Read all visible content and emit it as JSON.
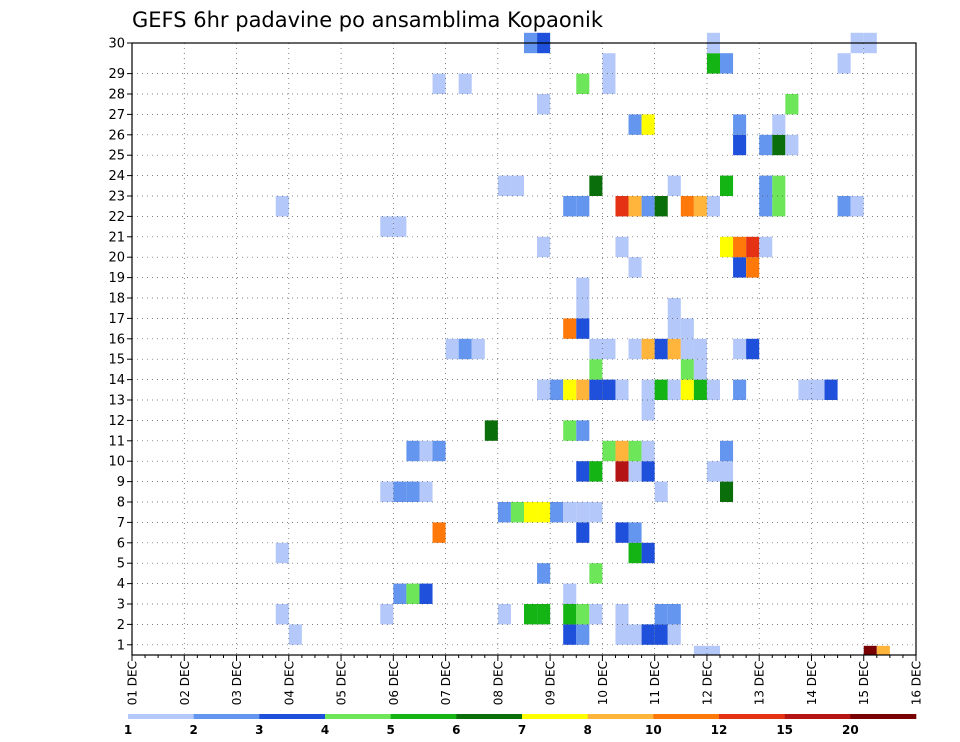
{
  "chart_data": {
    "type": "heatmap",
    "title": "GEFS 6hr padavine po ansamblima Kopaonik",
    "xlabel": "",
    "ylabel": "",
    "x_tick_labels": [
      "01 DEC",
      "02 DEC",
      "03 DEC",
      "04 DEC",
      "05 DEC",
      "06 DEC",
      "07 DEC",
      "08 DEC",
      "09 DEC",
      "10 DEC",
      "11 DEC",
      "12 DEC",
      "13 DEC",
      "14 DEC",
      "15 DEC",
      "16 DEC"
    ],
    "y_tick_labels": [
      "1",
      "2",
      "3",
      "4",
      "5",
      "6",
      "7",
      "8",
      "9",
      "10",
      "11",
      "12",
      "13",
      "14",
      "15",
      "16",
      "17",
      "18",
      "19",
      "20",
      "21",
      "22",
      "23",
      "24",
      "25",
      "26",
      "27",
      "28",
      "29",
      "30"
    ],
    "x_range": [
      "01 DEC 00Z",
      "16 DEC 00Z"
    ],
    "y_range": [
      0,
      30
    ],
    "time_step_hours": 6,
    "grid": "dotted",
    "legend_position": "bottom",
    "colorbar": {
      "labels": [
        "1",
        "2",
        "3",
        "4",
        "5",
        "6",
        "7",
        "8",
        "10",
        "12",
        "15",
        "20"
      ],
      "colors": [
        "#b4c8fa",
        "#6496f0",
        "#1e50dc",
        "#6ee65a",
        "#14b414",
        "#0a6e0a",
        "#ffff00",
        "#ffb43c",
        "#ff780a",
        "#e63214",
        "#b41414",
        "#780000"
      ]
    },
    "cells": [
      [
        1,
        1,
        3,
        1
      ],
      [
        1,
        3,
        6,
        3
      ],
      [
        1,
        3,
        7,
        2
      ],
      [
        1,
        4,
        1,
        1
      ],
      [
        1,
        4,
        2,
        1
      ],
      [
        1,
        4,
        3,
        3
      ],
      [
        1,
        4,
        4,
        3
      ],
      [
        1,
        4,
        5,
        1
      ],
      [
        2,
        1,
        2,
        1
      ],
      [
        2,
        2,
        1,
        1
      ],
      [
        2,
        3,
        1,
        1
      ],
      [
        2,
        3,
        3,
        5
      ],
      [
        2,
        3,
        4,
        5
      ],
      [
        2,
        3,
        6,
        5
      ],
      [
        2,
        3,
        7,
        4
      ],
      [
        2,
        3,
        8,
        1
      ],
      [
        2,
        4,
        1,
        1
      ],
      [
        2,
        4,
        4,
        2
      ],
      [
        2,
        4,
        5,
        2
      ],
      [
        3,
        2,
        2,
        2
      ],
      [
        3,
        2,
        3,
        4
      ],
      [
        3,
        2,
        4,
        3
      ],
      [
        3,
        3,
        6,
        1
      ],
      [
        4,
        3,
        4,
        2
      ],
      [
        4,
        3,
        8,
        4
      ],
      [
        5,
        1,
        2,
        1
      ],
      [
        5,
        4,
        2,
        5
      ],
      [
        5,
        4,
        3,
        3
      ],
      [
        6,
        2,
        5,
        9
      ],
      [
        6,
        3,
        7,
        3
      ],
      [
        6,
        4,
        1,
        3
      ],
      [
        6,
        4,
        2,
        2
      ],
      [
        7,
        3,
        1,
        2
      ],
      [
        7,
        3,
        2,
        4
      ],
      [
        7,
        3,
        3,
        7
      ],
      [
        7,
        3,
        4,
        7
      ],
      [
        7,
        3,
        5,
        2
      ],
      [
        7,
        3,
        6,
        1
      ],
      [
        7,
        3,
        7,
        1
      ],
      [
        7,
        3,
        8,
        1
      ],
      [
        8,
        2,
        1,
        1
      ],
      [
        8,
        2,
        2,
        2
      ],
      [
        8,
        2,
        3,
        2
      ],
      [
        8,
        2,
        4,
        1
      ],
      [
        8,
        4,
        4,
        1
      ],
      [
        8,
        5,
        0,
        6
      ],
      [
        9,
        3,
        7,
        3
      ],
      [
        9,
        3,
        8,
        5
      ],
      [
        9,
        4,
        1,
        11
      ],
      [
        9,
        4,
        2,
        1
      ],
      [
        9,
        4,
        3,
        3
      ],
      [
        9,
        4,
        8,
        1
      ],
      [
        9,
        4,
        9,
        1
      ],
      [
        10,
        2,
        3,
        2
      ],
      [
        10,
        2,
        4,
        1
      ],
      [
        10,
        2,
        5,
        2
      ],
      [
        10,
        4,
        0,
        4
      ],
      [
        10,
        4,
        1,
        8
      ],
      [
        10,
        4,
        2,
        4
      ],
      [
        10,
        4,
        3,
        1
      ],
      [
        10,
        5,
        0,
        2
      ],
      [
        11,
        3,
        0,
        6
      ],
      [
        11,
        3,
        6,
        4
      ],
      [
        11,
        3,
        7,
        2
      ],
      [
        12,
        4,
        3,
        1
      ],
      [
        13,
        3,
        4,
        1
      ],
      [
        13,
        3,
        5,
        2
      ],
      [
        13,
        3,
        6,
        7
      ],
      [
        13,
        3,
        7,
        8
      ],
      [
        13,
        3,
        8,
        3
      ],
      [
        13,
        4,
        0,
        3
      ],
      [
        13,
        4,
        1,
        1
      ],
      [
        13,
        4,
        3,
        1
      ],
      [
        13,
        4,
        4,
        5
      ],
      [
        13,
        4,
        5,
        1
      ],
      [
        13,
        4,
        6,
        7
      ],
      [
        13,
        4,
        7,
        5
      ],
      [
        13,
        4,
        8,
        1
      ],
      [
        13,
        5,
        1,
        2
      ],
      [
        13,
        5,
        6,
        1
      ],
      [
        13,
        5,
        7,
        1
      ],
      [
        13,
        5,
        8,
        3
      ],
      [
        14,
        3,
        8,
        4
      ],
      [
        14,
        4,
        6,
        4
      ],
      [
        14,
        4,
        7,
        1
      ],
      [
        15,
        2,
        6,
        1
      ],
      [
        15,
        2,
        7,
        2
      ],
      [
        15,
        2,
        8,
        1
      ],
      [
        15,
        3,
        8,
        1
      ],
      [
        15,
        4,
        0,
        1
      ],
      [
        15,
        4,
        2,
        1
      ],
      [
        15,
        4,
        3,
        8
      ],
      [
        15,
        4,
        4,
        3
      ],
      [
        15,
        4,
        5,
        8
      ],
      [
        15,
        4,
        6,
        1
      ],
      [
        15,
        4,
        7,
        1
      ],
      [
        15,
        5,
        1,
        1
      ],
      [
        15,
        5,
        2,
        3
      ],
      [
        16,
        3,
        6,
        9
      ],
      [
        16,
        3,
        7,
        3
      ],
      [
        16,
        4,
        5,
        1
      ],
      [
        16,
        4,
        6,
        1
      ],
      [
        17,
        3,
        7,
        1
      ],
      [
        17,
        4,
        5,
        1
      ],
      [
        18,
        3,
        7,
        1
      ],
      [
        19,
        4,
        2,
        1
      ],
      [
        19,
        5,
        1,
        3
      ],
      [
        19,
        5,
        2,
        9
      ],
      [
        20,
        3,
        4,
        1
      ],
      [
        20,
        4,
        1,
        1
      ],
      [
        20,
        5,
        0,
        7
      ],
      [
        20,
        5,
        1,
        9
      ],
      [
        20,
        5,
        2,
        10
      ],
      [
        20,
        5,
        3,
        1
      ],
      [
        21,
        2,
        1,
        1
      ],
      [
        21,
        2,
        2,
        1
      ],
      [
        22,
        1,
        2,
        1
      ],
      [
        22,
        3,
        6,
        2
      ],
      [
        22,
        3,
        7,
        2
      ],
      [
        22,
        4,
        1,
        10
      ],
      [
        22,
        4,
        2,
        8
      ],
      [
        22,
        4,
        3,
        2
      ],
      [
        22,
        4,
        4,
        6
      ],
      [
        22,
        4,
        6,
        9
      ],
      [
        22,
        4,
        7,
        8
      ],
      [
        22,
        4,
        8,
        1
      ],
      [
        22,
        5,
        3,
        2
      ],
      [
        22,
        5,
        4,
        4
      ],
      [
        22,
        6,
        0,
        2
      ],
      [
        22,
        6,
        1,
        1
      ],
      [
        23,
        3,
        1,
        1
      ],
      [
        23,
        3,
        2,
        1
      ],
      [
        23,
        3,
        8,
        6
      ],
      [
        23,
        4,
        5,
        1
      ],
      [
        23,
        5,
        0,
        5
      ],
      [
        23,
        5,
        3,
        2
      ],
      [
        23,
        5,
        4,
        4
      ],
      [
        25,
        5,
        1,
        3
      ],
      [
        25,
        5,
        3,
        2
      ],
      [
        25,
        5,
        4,
        6
      ],
      [
        25,
        5,
        5,
        1
      ],
      [
        26,
        4,
        2,
        2
      ],
      [
        26,
        4,
        3,
        7
      ],
      [
        26,
        5,
        1,
        2
      ],
      [
        26,
        5,
        4,
        1
      ],
      [
        27,
        3,
        4,
        1
      ],
      [
        27,
        5,
        5,
        4
      ],
      [
        28,
        2,
        5,
        1
      ],
      [
        28,
        2,
        7,
        1
      ],
      [
        28,
        3,
        7,
        4
      ],
      [
        28,
        4,
        0,
        1
      ],
      [
        29,
        4,
        0,
        1
      ],
      [
        29,
        4,
        8,
        5
      ],
      [
        29,
        5,
        0,
        2
      ],
      [
        29,
        6,
        0,
        1
      ],
      [
        30,
        3,
        3,
        2
      ],
      [
        30,
        3,
        4,
        3
      ],
      [
        30,
        4,
        8,
        1
      ],
      [
        30,
        6,
        1,
        1
      ],
      [
        30,
        6,
        2,
        1
      ],
      [
        0,
        4,
        7,
        1
      ],
      [
        0,
        4,
        8,
        1
      ],
      [
        0,
        6,
        2,
        12
      ],
      [
        0,
        6,
        3,
        8
      ]
    ],
    "cells_format": "[member, hour_digit_group_unused, x_step_index, color_index] encoded as [row, block, step, color]"
  }
}
